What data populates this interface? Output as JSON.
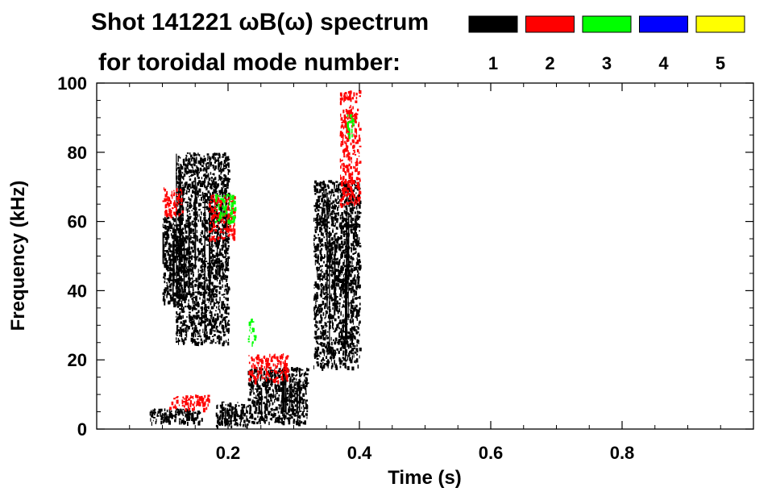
{
  "chart_data": {
    "type": "heatmap",
    "title_line1": "Shot 141221 ωB(ω) spectrum",
    "title_line2": "for toroidal mode number:",
    "xlabel": "Time (s)",
    "ylabel": "Frequency (kHz)",
    "xlim": [
      0.0,
      1.0
    ],
    "ylim": [
      0,
      100
    ],
    "x_ticks": [
      0.2,
      0.4,
      0.6,
      0.8
    ],
    "y_ticks": [
      0,
      20,
      40,
      60,
      80,
      100
    ],
    "legend": [
      {
        "mode": "1",
        "color": "#000000"
      },
      {
        "mode": "2",
        "color": "#ff0000"
      },
      {
        "mode": "3",
        "color": "#00ff00"
      },
      {
        "mode": "4",
        "color": "#0000ff"
      },
      {
        "mode": "5",
        "color": "#ffff00"
      }
    ],
    "activity_regions": [
      {
        "mode": "1",
        "t_start": 0.1,
        "t_end": 0.13,
        "f_low": 36,
        "f_high": 62
      },
      {
        "mode": "1",
        "t_start": 0.12,
        "t_end": 0.2,
        "f_low": 25,
        "f_high": 80
      },
      {
        "mode": "1",
        "t_start": 0.08,
        "t_end": 0.16,
        "f_low": 2,
        "f_high": 6
      },
      {
        "mode": "1",
        "t_start": 0.18,
        "t_end": 0.23,
        "f_low": 1,
        "f_high": 8
      },
      {
        "mode": "1",
        "t_start": 0.23,
        "t_end": 0.32,
        "f_low": 2,
        "f_high": 18
      },
      {
        "mode": "1",
        "t_start": 0.33,
        "t_end": 0.4,
        "f_low": 18,
        "f_high": 72
      },
      {
        "mode": "2",
        "t_start": 0.1,
        "t_end": 0.13,
        "f_low": 62,
        "f_high": 70
      },
      {
        "mode": "2",
        "t_start": 0.17,
        "t_end": 0.21,
        "f_low": 55,
        "f_high": 68
      },
      {
        "mode": "2",
        "t_start": 0.23,
        "t_end": 0.29,
        "f_low": 14,
        "f_high": 22
      },
      {
        "mode": "2",
        "t_start": 0.37,
        "t_end": 0.4,
        "f_low": 65,
        "f_high": 98
      },
      {
        "mode": "2",
        "t_start": 0.11,
        "t_end": 0.17,
        "f_low": 6,
        "f_high": 10
      },
      {
        "mode": "3",
        "t_start": 0.18,
        "t_end": 0.21,
        "f_low": 60,
        "f_high": 68
      },
      {
        "mode": "3",
        "t_start": 0.23,
        "t_end": 0.24,
        "f_low": 25,
        "f_high": 32
      },
      {
        "mode": "3",
        "t_start": 0.38,
        "t_end": 0.39,
        "f_low": 85,
        "f_high": 92
      }
    ]
  }
}
